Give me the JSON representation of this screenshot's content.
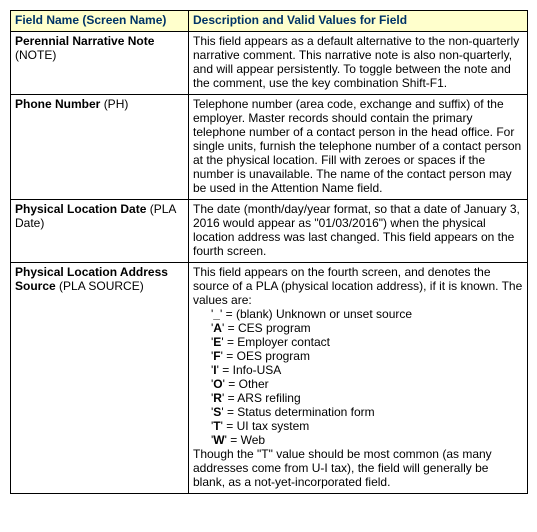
{
  "header": {
    "col1": "Field Name (Screen Name)",
    "col2": "Description and Valid Values for Field"
  },
  "rows": [
    {
      "field": "Perennial Narrative Note",
      "screen": "(NOTE)",
      "desc": "This field appears as a default alternative to the non-quarterly narrative comment.  This narrative note is also non-quarterly, and will appear persistently.  To toggle between the note and the comment, use the key combination Shift-F1."
    },
    {
      "field": "Phone Number",
      "screen": "(PH)",
      "desc": "Telephone number (area code, exchange and suffix) of the employer.  Master records should contain the primary telephone number of a contact person in the head office.  For single units, furnish the telephone number of a contact person at the physical location.  Fill with zeroes or spaces if the number is unavailable.  The name of the contact person may be used in the Attention Name field."
    },
    {
      "field": "Physical Location Date",
      "screen": "(PLA Date)",
      "desc": "The date (month/day/year format, so that a date of January 3, 2016 would appear as \"01/03/2016\") when the physical location address was last changed.  This field appears on the fourth screen."
    }
  ],
  "pla_source": {
    "field": "Physical Location Address Source",
    "screen": "(PLA SOURCE)",
    "intro": "This field appears on the fourth screen, and denotes the source of a PLA (physical location address), if it is known.  The values are:",
    "values": [
      {
        "code": "_",
        "label": "(blank) Unknown or unset source"
      },
      {
        "code": "A",
        "label": "CES program"
      },
      {
        "code": "E",
        "label": "Employer contact"
      },
      {
        "code": "F",
        "label": "OES program"
      },
      {
        "code": "I",
        "label": "Info-USA"
      },
      {
        "code": "O",
        "label": "Other"
      },
      {
        "code": "R",
        "label": "ARS refiling"
      },
      {
        "code": "S",
        "label": "Status determination form"
      },
      {
        "code": "T",
        "label": "UI tax system"
      },
      {
        "code": "W",
        "label": "Web"
      }
    ],
    "outro": "Though the \"T\" value should be most common (as many addresses come from U-I tax), the field will generally be blank, as a not-yet-incorporated field."
  }
}
